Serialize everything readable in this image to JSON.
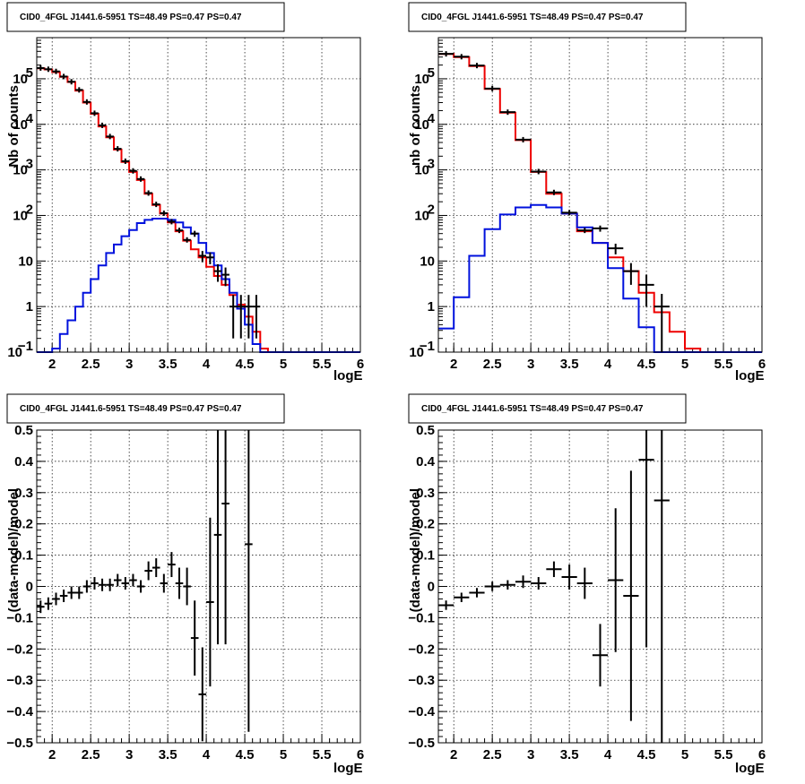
{
  "colors": {
    "data": "#000000",
    "model_total": "#ee0000",
    "model_source": "#0011dd"
  },
  "chart_data": [
    {
      "type": "histogram",
      "title": "CID0_4FGL J1441.6-5951 TS=48.49 PS=0.47 PS=0.47",
      "xlabel": "logE",
      "ylabel": "Nb of counts",
      "xlim": [
        1.8,
        6.0
      ],
      "ylim": [
        0.1,
        800000
      ],
      "log_y": true,
      "grid": true,
      "x_ticks": [
        "2",
        "2.5",
        "3",
        "3.5",
        "4",
        "4.5",
        "5",
        "5.5",
        "6"
      ],
      "y_ticks": [
        {
          "value": 0.1,
          "label": "10",
          "exp": "−1"
        },
        {
          "value": 1,
          "label": "1",
          "exp": ""
        },
        {
          "value": 10,
          "label": "10",
          "exp": ""
        },
        {
          "value": 100,
          "label": "10",
          "exp": "2"
        },
        {
          "value": 1000,
          "label": "10",
          "exp": "3"
        },
        {
          "value": 10000,
          "label": "10",
          "exp": "4"
        },
        {
          "value": 100000,
          "label": "10",
          "exp": "5"
        }
      ],
      "bin_edges": [
        1.8,
        1.9,
        2.0,
        2.1,
        2.2,
        2.3,
        2.4,
        2.5,
        2.6,
        2.7,
        2.8,
        2.9,
        3.0,
        3.1,
        3.2,
        3.3,
        3.4,
        3.5,
        3.6,
        3.7,
        3.8,
        3.9,
        4.0,
        4.1,
        4.2,
        4.3,
        4.4,
        4.5,
        4.6,
        4.7,
        4.8,
        4.9,
        5.0,
        5.1,
        5.2,
        5.3,
        5.4,
        5.5,
        5.6,
        5.7,
        5.8,
        5.9,
        6.0
      ],
      "series": [
        {
          "name": "",
          "kind": "step",
          "color": "#ee0000",
          "values": [
            170000,
            160000,
            140000,
            110000,
            85000,
            55000,
            30000,
            17000,
            9000,
            5200,
            2800,
            1500,
            900,
            600,
            300,
            170,
            110,
            70,
            45,
            28,
            18,
            12,
            7.5,
            4.7,
            3.0,
            1.8,
            1.1,
            0.6,
            0.28,
            0.12,
            0.1,
            0.1,
            0.1,
            0.1,
            0.1,
            0.1,
            0.1,
            0.1,
            0.1,
            0.1,
            0.1,
            0.1
          ]
        },
        {
          "name": "",
          "kind": "step",
          "color": "#0011dd",
          "values": [
            0.1,
            0.1,
            0.12,
            0.25,
            0.5,
            1.0,
            2.0,
            4.0,
            8.0,
            15,
            23,
            35,
            48,
            68,
            80,
            85,
            85,
            80,
            70,
            55,
            40,
            25,
            15,
            8,
            4,
            2,
            0.9,
            0.4,
            0.15,
            0.1,
            0.1,
            0.1,
            0.1,
            0.1,
            0.1,
            0.1,
            0.1,
            0.1,
            0.1,
            0.1,
            0.1,
            0.1
          ]
        },
        {
          "name": "",
          "kind": "points",
          "color": "#000000",
          "x": [
            1.85,
            1.95,
            2.05,
            2.15,
            2.25,
            2.35,
            2.45,
            2.55,
            2.65,
            2.75,
            2.85,
            2.95,
            3.05,
            3.15,
            3.25,
            3.35,
            3.45,
            3.55,
            3.65,
            3.75,
            3.85,
            3.95,
            4.05,
            4.15,
            4.25,
            4.35,
            4.45,
            4.55,
            4.65
          ],
          "y": [
            172000,
            162000,
            145000,
            112000,
            86000,
            57000,
            31000,
            17500,
            9500,
            5400,
            2900,
            1550,
            950,
            630,
            310,
            175,
            112,
            73,
            47,
            29,
            40,
            13,
            12,
            6,
            5,
            1,
            1,
            1,
            1
          ],
          "y_err": [
            0,
            0,
            0,
            0,
            0,
            0,
            0,
            0,
            0,
            0,
            0,
            0,
            0,
            0,
            0,
            0,
            0,
            0,
            0,
            0,
            6,
            3.6,
            3.5,
            2.5,
            2.2,
            0.8,
            0.8,
            0.8,
            0.8
          ],
          "x_err": 0.05
        }
      ]
    },
    {
      "type": "histogram",
      "title": "CID0_4FGL J1441.6-5951 TS=48.49 PS=0.47 PS=0.47",
      "xlabel": "logE",
      "ylabel": "nb of counts",
      "xlim": [
        1.8,
        6.0
      ],
      "ylim": [
        0.1,
        800000
      ],
      "log_y": true,
      "grid": true,
      "x_ticks": [
        "2",
        "2.5",
        "3",
        "3.5",
        "4",
        "4.5",
        "5",
        "5.5",
        "6"
      ],
      "y_ticks": [
        {
          "value": 0.1,
          "label": "10",
          "exp": "−1"
        },
        {
          "value": 1,
          "label": "1",
          "exp": ""
        },
        {
          "value": 10,
          "label": "10",
          "exp": ""
        },
        {
          "value": 100,
          "label": "10",
          "exp": "2"
        },
        {
          "value": 1000,
          "label": "10",
          "exp": "3"
        },
        {
          "value": 10000,
          "label": "10",
          "exp": "4"
        },
        {
          "value": 100000,
          "label": "10",
          "exp": "5"
        }
      ],
      "bin_edges": [
        1.8,
        2.0,
        2.2,
        2.4,
        2.6,
        2.8,
        3.0,
        3.2,
        3.4,
        3.6,
        3.8,
        4.0,
        4.2,
        4.4,
        4.6,
        4.8,
        5.0,
        5.2,
        5.4,
        5.6,
        5.8,
        6.0
      ],
      "series": [
        {
          "name": "",
          "kind": "step",
          "color": "#ee0000",
          "values": [
            350000,
            300000,
            190000,
            60000,
            18000,
            4500,
            900,
            300,
            110,
            45,
            25,
            12,
            6,
            2.0,
            0.75,
            0.28,
            0.12,
            0.1,
            0.1,
            0.1,
            0.1
          ]
        },
        {
          "name": "",
          "kind": "step",
          "color": "#0011dd",
          "values": [
            0.33,
            1.6,
            13,
            50,
            105,
            150,
            170,
            150,
            110,
            55,
            25,
            7,
            1.5,
            0.35,
            0.1,
            0.1,
            0.1,
            0.1,
            0.1,
            0.1,
            0.1
          ]
        },
        {
          "name": "",
          "kind": "points",
          "color": "#000000",
          "x": [
            1.9,
            2.1,
            2.3,
            2.5,
            2.7,
            2.9,
            3.1,
            3.3,
            3.5,
            3.7,
            3.9,
            4.1,
            4.3,
            4.5,
            4.7
          ],
          "y": [
            352000,
            305000,
            195000,
            61000,
            18500,
            4600,
            920,
            320,
            115,
            47,
            52,
            19,
            6,
            3,
            1
          ],
          "y_err": [
            0,
            0,
            0,
            0,
            0,
            0,
            0,
            0,
            0,
            0,
            8,
            5,
            3,
            2,
            0.9
          ],
          "x_err": 0.1
        }
      ]
    },
    {
      "type": "scatter",
      "title": "CID0_4FGL J1441.6-5951 TS=48.49 PS=0.47 PS=0.47",
      "xlabel": "logE",
      "ylabel": "(data-model)/model",
      "xlim": [
        1.8,
        6.0
      ],
      "ylim": [
        -0.5,
        0.5
      ],
      "log_y": false,
      "grid": true,
      "x_ticks": [
        "2",
        "2.5",
        "3",
        "3.5",
        "4",
        "4.5",
        "5",
        "5.5",
        "6"
      ],
      "y_ticks": [
        {
          "value": -0.5,
          "label": "−0.5",
          "exp": ""
        },
        {
          "value": -0.4,
          "label": "−0.4",
          "exp": ""
        },
        {
          "value": -0.3,
          "label": "−0.3",
          "exp": ""
        },
        {
          "value": -0.2,
          "label": "−0.2",
          "exp": ""
        },
        {
          "value": -0.1,
          "label": "−0.1",
          "exp": ""
        },
        {
          "value": 0,
          "label": "0",
          "exp": ""
        },
        {
          "value": 0.1,
          "label": "0.1",
          "exp": ""
        },
        {
          "value": 0.2,
          "label": "0.2",
          "exp": ""
        },
        {
          "value": 0.3,
          "label": "0.3",
          "exp": ""
        },
        {
          "value": 0.4,
          "label": "0.4",
          "exp": ""
        },
        {
          "value": 0.5,
          "label": "0.5",
          "exp": ""
        }
      ],
      "series": [
        {
          "name": "",
          "kind": "points",
          "color": "#000000",
          "x": [
            1.85,
            1.95,
            2.05,
            2.15,
            2.25,
            2.35,
            2.45,
            2.55,
            2.65,
            2.75,
            2.85,
            2.95,
            3.05,
            3.15,
            3.25,
            3.35,
            3.45,
            3.55,
            3.65,
            3.75,
            3.85,
            3.95,
            4.05,
            4.15,
            4.25,
            4.55
          ],
          "y": [
            -0.065,
            -0.055,
            -0.04,
            -0.03,
            -0.02,
            -0.02,
            0.0,
            0.01,
            0.005,
            0.005,
            0.02,
            0.01,
            0.02,
            0.0,
            0.05,
            0.06,
            0.01,
            0.07,
            0.01,
            0.0,
            -0.165,
            -0.345,
            -0.05,
            0.165,
            0.265,
            0.135
          ],
          "y_err": [
            0.02,
            0.02,
            0.02,
            0.02,
            0.02,
            0.02,
            0.02,
            0.02,
            0.02,
            0.02,
            0.02,
            0.02,
            0.02,
            0.02,
            0.03,
            0.03,
            0.03,
            0.04,
            0.05,
            0.06,
            0.12,
            0.15,
            0.27,
            0.35,
            0.45,
            0.6
          ],
          "x_err": 0.05
        }
      ]
    },
    {
      "type": "scatter",
      "title": "CID0_4FGL J1441.6-5951 TS=48.49 PS=0.47 PS=0.47",
      "xlabel": "logE",
      "ylabel": "(data-model)/model",
      "xlim": [
        1.8,
        6.0
      ],
      "ylim": [
        -0.5,
        0.5
      ],
      "log_y": false,
      "grid": true,
      "x_ticks": [
        "2",
        "2.5",
        "3",
        "3.5",
        "4",
        "4.5",
        "5",
        "5.5",
        "6"
      ],
      "y_ticks": [
        {
          "value": -0.5,
          "label": "−0.5",
          "exp": ""
        },
        {
          "value": -0.4,
          "label": "−0.4",
          "exp": ""
        },
        {
          "value": -0.3,
          "label": "−0.3",
          "exp": ""
        },
        {
          "value": -0.2,
          "label": "−0.2",
          "exp": ""
        },
        {
          "value": -0.1,
          "label": "−0.1",
          "exp": ""
        },
        {
          "value": 0,
          "label": "0",
          "exp": ""
        },
        {
          "value": 0.1,
          "label": "0.1",
          "exp": ""
        },
        {
          "value": 0.2,
          "label": "0.2",
          "exp": ""
        },
        {
          "value": 0.3,
          "label": "0.3",
          "exp": ""
        },
        {
          "value": 0.4,
          "label": "0.4",
          "exp": ""
        },
        {
          "value": 0.5,
          "label": "0.5",
          "exp": ""
        }
      ],
      "series": [
        {
          "name": "",
          "kind": "points",
          "color": "#000000",
          "x": [
            1.9,
            2.1,
            2.3,
            2.5,
            2.7,
            2.9,
            3.1,
            3.3,
            3.5,
            3.7,
            3.9,
            4.1,
            4.3,
            4.5,
            4.7
          ],
          "y": [
            -0.06,
            -0.035,
            -0.02,
            0.0,
            0.005,
            0.015,
            0.01,
            0.055,
            0.03,
            0.01,
            -0.22,
            0.02,
            -0.03,
            0.405,
            0.275
          ],
          "y_err": [
            0.015,
            0.015,
            0.015,
            0.015,
            0.015,
            0.02,
            0.02,
            0.025,
            0.04,
            0.05,
            0.1,
            0.23,
            0.4,
            0.6,
            0.8
          ],
          "x_err": 0.1
        }
      ]
    }
  ]
}
